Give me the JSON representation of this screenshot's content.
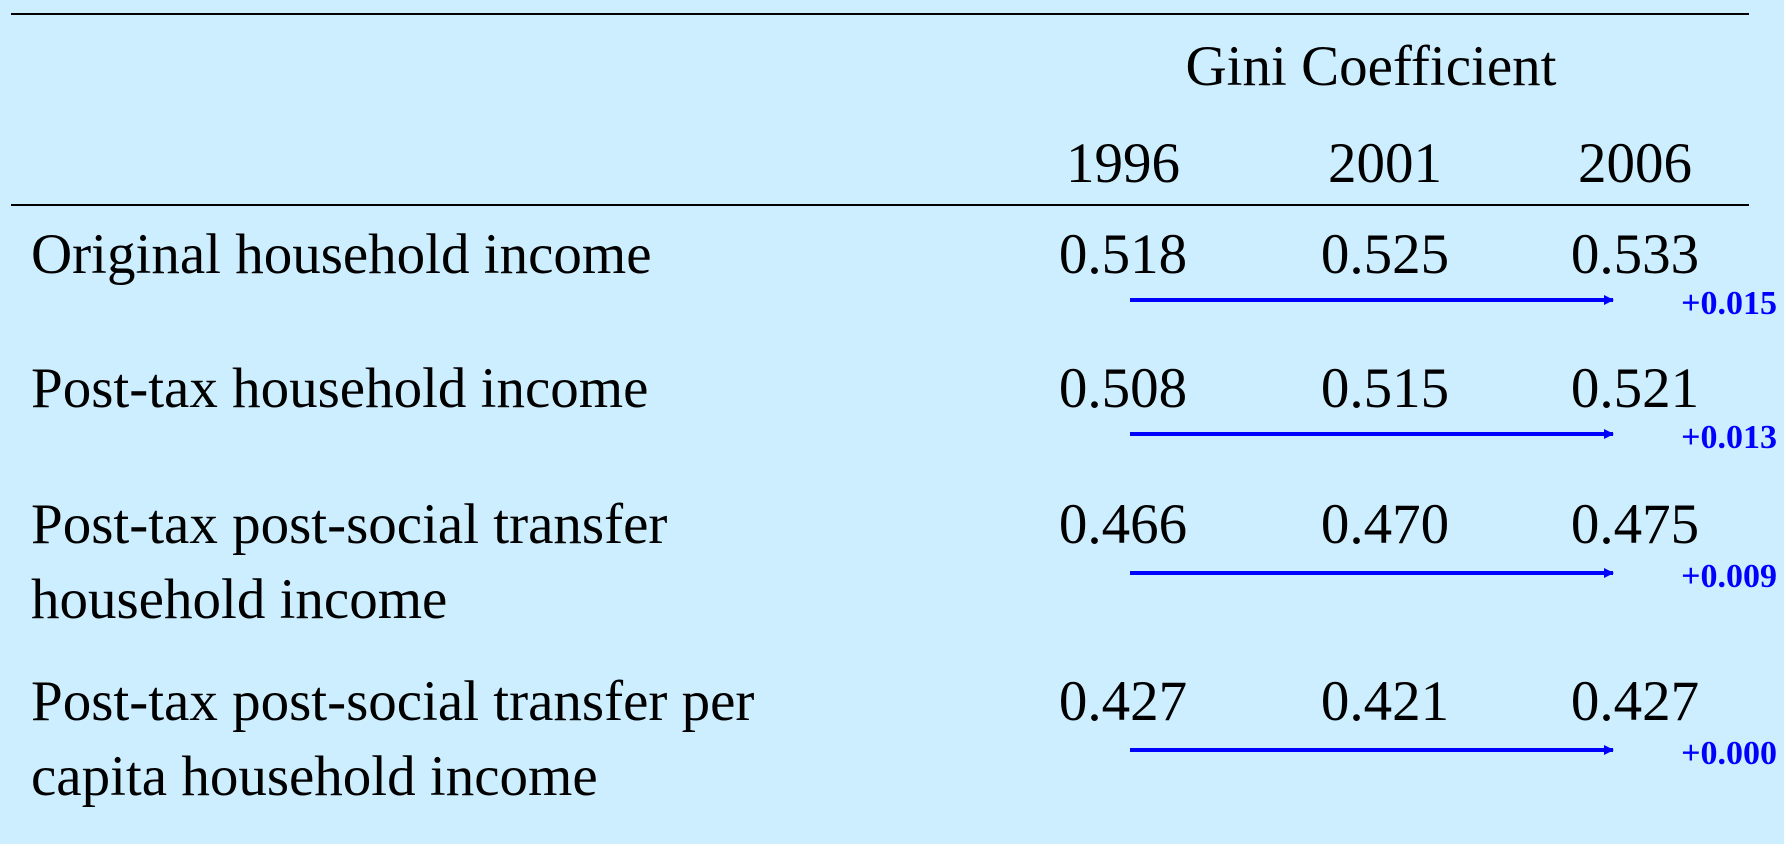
{
  "table": {
    "group_header": "Gini Coefficient",
    "columns": [
      "1996",
      "2001",
      "2006"
    ],
    "rows": [
      {
        "label": [
          "Original household income"
        ],
        "values": [
          "0.518",
          "0.525",
          "0.533"
        ],
        "change": "+0.015"
      },
      {
        "label": [
          "Post-tax household income"
        ],
        "values": [
          "0.508",
          "0.515",
          "0.521"
        ],
        "change": "+0.013"
      },
      {
        "label": [
          "Post-tax post-social transfer",
          "household income"
        ],
        "values": [
          "0.466",
          "0.470",
          "0.475"
        ],
        "change": "+0.009"
      },
      {
        "label": [
          "Post-tax post-social transfer per",
          "capita household income"
        ],
        "values": [
          "0.427",
          "0.421",
          "0.427"
        ],
        "change": "+0.000"
      }
    ]
  }
}
